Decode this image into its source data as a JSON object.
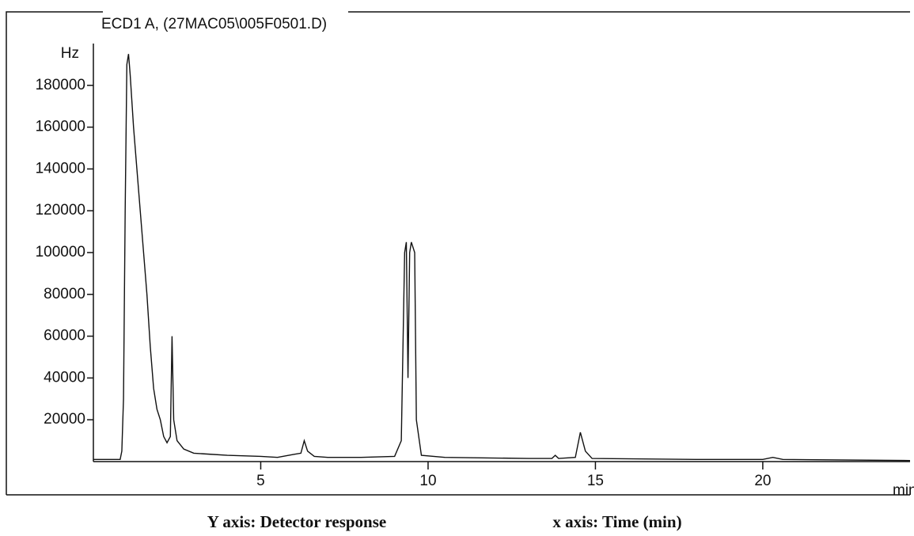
{
  "chart_data": {
    "type": "line",
    "title": "ECD1 A, (27MAC05\\005F0501.D)",
    "x_label": "min",
    "y_label": "Hz",
    "annotations": [
      "Y axis: Detector response",
      "x axis: Time (min)"
    ],
    "xlim": [
      0,
      24.4
    ],
    "ylim": [
      0,
      200000
    ],
    "xticks": [
      5,
      10,
      15,
      20
    ],
    "yticks": [
      20000,
      40000,
      60000,
      80000,
      100000,
      120000,
      140000,
      160000,
      180000
    ],
    "x": [
      0,
      0.8,
      0.85,
      0.9,
      0.95,
      1.0,
      1.05,
      1.1,
      1.2,
      1.3,
      1.4,
      1.5,
      1.6,
      1.7,
      1.8,
      1.9,
      2.0,
      2.1,
      2.2,
      2.3,
      2.35,
      2.4,
      2.5,
      2.7,
      3.0,
      3.5,
      4.0,
      5.0,
      5.5,
      6.0,
      6.2,
      6.3,
      6.4,
      6.6,
      7.0,
      8.0,
      9.0,
      9.2,
      9.3,
      9.35,
      9.4,
      9.45,
      9.5,
      9.6,
      9.65,
      9.8,
      10.5,
      13.0,
      13.7,
      13.8,
      13.9,
      14.4,
      14.55,
      14.7,
      14.9,
      18,
      20,
      20.3,
      20.6,
      24.4
    ],
    "series": [
      {
        "name": "ECD1 A",
        "color": "#111111",
        "values": [
          1000,
          1000,
          5000,
          30000,
          120000,
          190000,
          195000,
          185000,
          160000,
          140000,
          120000,
          100000,
          80000,
          55000,
          35000,
          25000,
          20000,
          12000,
          9000,
          12000,
          60000,
          20000,
          10000,
          6000,
          4000,
          3500,
          3000,
          2500,
          2000,
          3500,
          4000,
          10000,
          5000,
          2500,
          2000,
          2000,
          2500,
          10000,
          100000,
          105000,
          40000,
          100000,
          105000,
          100000,
          20000,
          3000,
          2000,
          1500,
          1500,
          3000,
          1500,
          2000,
          14000,
          5000,
          1500,
          1000,
          1000,
          2000,
          1000,
          500
        ]
      }
    ]
  }
}
